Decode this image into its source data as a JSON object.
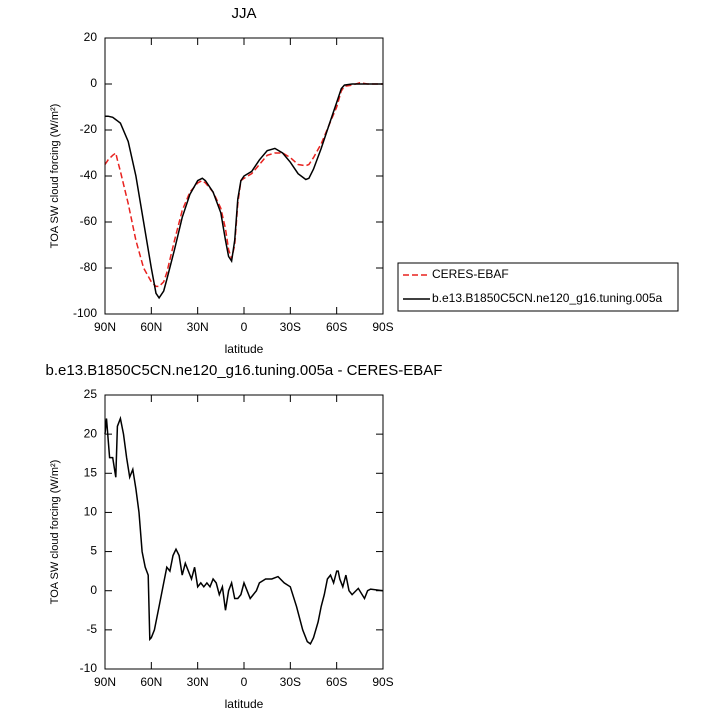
{
  "chart_data": [
    {
      "type": "line",
      "title": "JJA",
      "xlabel": "latitude",
      "ylabel": "TOA SW cloud forcing (W/m²)",
      "xlim": [
        90,
        -90
      ],
      "ylim": [
        -100,
        20
      ],
      "xticks": [
        {
          "value": 90,
          "label": "90N"
        },
        {
          "value": 60,
          "label": "60N"
        },
        {
          "value": 30,
          "label": "30N"
        },
        0,
        {
          "value": -30,
          "label": "30S"
        },
        {
          "value": -60,
          "label": "60S"
        },
        {
          "value": -90,
          "label": "90S"
        }
      ],
      "yticks": [
        -100,
        -80,
        -60,
        -40,
        -20,
        0,
        20
      ],
      "legend": "right",
      "x": [
        90,
        88,
        85,
        83,
        82,
        80,
        75,
        70,
        65,
        60,
        57,
        55,
        52,
        50,
        45,
        40,
        35,
        30,
        27,
        25,
        20,
        15,
        12,
        10,
        8,
        6,
        4,
        2,
        0,
        -5,
        -10,
        -15,
        -20,
        -25,
        -30,
        -35,
        -40,
        -42,
        -45,
        -50,
        -55,
        -60,
        -63,
        -65,
        -70,
        -75,
        -80,
        -90
      ],
      "series": [
        {
          "name": "CERES-EBAF",
          "color": "#e8221f",
          "line_style": "dashed",
          "values": [
            -35,
            -33,
            -31,
            -30,
            -33,
            -38,
            -52,
            -68,
            -80,
            -86,
            -88,
            -88,
            -86,
            -82,
            -68,
            -55,
            -47,
            -43,
            -42,
            -43,
            -47,
            -54,
            -63,
            -72,
            -76,
            -70,
            -52,
            -42,
            -41,
            -39,
            -35,
            -31,
            -30,
            -30,
            -32,
            -35,
            -35.5,
            -35,
            -32,
            -26,
            -18,
            -10,
            -3,
            -1,
            -0.5,
            0.5,
            0,
            0
          ]
        },
        {
          "name": "b.e13.B1850C5CN.ne120_g16.tuning.005a",
          "color": "#000000",
          "line_style": "solid",
          "values": [
            -14,
            -14,
            -14.5,
            -15.5,
            -16,
            -17,
            -25,
            -40,
            -60,
            -80,
            -91,
            -93,
            -90,
            -85,
            -72,
            -58,
            -48,
            -42,
            -41,
            -42,
            -47,
            -56,
            -68,
            -75,
            -77,
            -68,
            -50,
            -42,
            -40,
            -38,
            -33,
            -29,
            -28,
            -30,
            -34,
            -39,
            -41.5,
            -41,
            -37,
            -28,
            -18,
            -8,
            -2,
            -0.5,
            0,
            0,
            0,
            0
          ]
        }
      ]
    },
    {
      "type": "line",
      "title": "b.e13.B1850C5CN.ne120_g16.tuning.005a - CERES-EBAF",
      "xlabel": "latitude",
      "ylabel": "TOA SW cloud forcing (W/m²)",
      "xlim": [
        90,
        -90
      ],
      "ylim": [
        -10,
        25
      ],
      "xticks": [
        {
          "value": 90,
          "label": "90N"
        },
        {
          "value": 60,
          "label": "60N"
        },
        {
          "value": 30,
          "label": "30N"
        },
        0,
        {
          "value": -30,
          "label": "30S"
        },
        {
          "value": -60,
          "label": "60S"
        },
        {
          "value": -90,
          "label": "90S"
        }
      ],
      "yticks": [
        -10,
        -5,
        0,
        5,
        10,
        15,
        20,
        25
      ],
      "x": [
        90,
        89,
        87,
        85,
        83,
        82,
        80,
        78,
        76,
        74,
        72,
        70,
        68,
        66,
        64,
        62,
        61,
        60,
        58,
        55,
        52,
        50,
        48,
        46,
        44,
        42,
        40,
        38,
        36,
        34,
        32,
        30,
        28,
        26,
        24,
        22,
        20,
        18,
        16,
        14,
        12,
        10,
        8,
        6,
        4,
        2,
        0,
        -2,
        -4,
        -6,
        -8,
        -10,
        -14,
        -18,
        -22,
        -26,
        -30,
        -34,
        -38,
        -41,
        -43,
        -45,
        -48,
        -50,
        -52,
        -54,
        -56,
        -58,
        -60,
        -61,
        -62,
        -64,
        -66,
        -68,
        -70,
        -74,
        -78,
        -80,
        -82,
        -90
      ],
      "series": [
        {
          "color": "#000000",
          "values": [
            20,
            22,
            17,
            17,
            14.5,
            21,
            22,
            20,
            17,
            14.5,
            15.5,
            13,
            10,
            5,
            3,
            2,
            -6.2,
            -6,
            -5,
            -2,
            1,
            3,
            2.5,
            4.5,
            5.3,
            4.5,
            2,
            3.5,
            2.5,
            1.5,
            3,
            0.5,
            1,
            0.5,
            1,
            0.5,
            1.5,
            1,
            -0.5,
            0.5,
            -2.5,
            0,
            1,
            -1,
            -1,
            -0.5,
            1,
            0,
            -1,
            -0.5,
            0,
            1,
            1.5,
            1.5,
            1.8,
            1,
            0.5,
            -2,
            -5,
            -6.5,
            -6.8,
            -6,
            -4,
            -2,
            -0.5,
            1.5,
            2,
            1,
            2.5,
            2.5,
            1.5,
            0.5,
            2,
            0,
            -0.5,
            0.3,
            -1,
            0,
            0.2,
            0
          ]
        }
      ]
    }
  ]
}
